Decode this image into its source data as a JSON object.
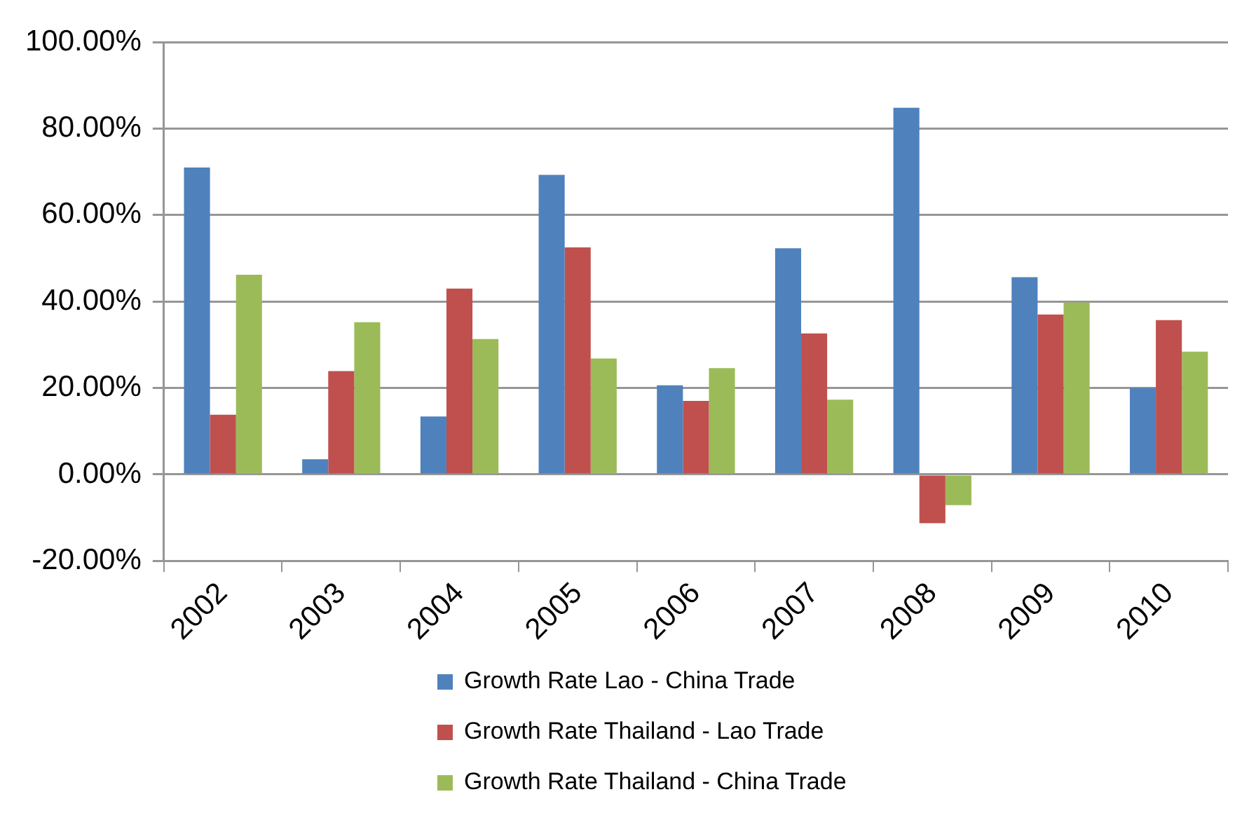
{
  "chart_data": {
    "type": "bar",
    "categories": [
      "2002",
      "2003",
      "2004",
      "2005",
      "2006",
      "2007",
      "2008",
      "2009",
      "2010"
    ],
    "series": [
      {
        "name": "Growth Rate Lao - China Trade",
        "color": "#4f81bd",
        "values": [
          71.0,
          3.5,
          13.4,
          69.3,
          20.6,
          52.3,
          84.8,
          45.6,
          20.0
        ]
      },
      {
        "name": "Growth Rate Thailand - Lao Trade",
        "color": "#c0504d",
        "values": [
          13.8,
          23.9,
          43.0,
          52.5,
          17.0,
          32.6,
          -11.3,
          37.0,
          35.7
        ]
      },
      {
        "name": "Growth Rate Thailand - China Trade",
        "color": "#9bbb59",
        "values": [
          46.2,
          35.2,
          31.3,
          26.8,
          24.6,
          17.3,
          -7.1,
          39.8,
          28.4
        ]
      }
    ],
    "ylim": [
      -20,
      100
    ],
    "yticks": [
      {
        "value": -20,
        "label": "-20.00%"
      },
      {
        "value": 0,
        "label": "0.00%"
      },
      {
        "value": 20,
        "label": "20.00%"
      },
      {
        "value": 40,
        "label": "40.00%"
      },
      {
        "value": 60,
        "label": "60.00%"
      },
      {
        "value": 80,
        "label": "80.00%"
      },
      {
        "value": 100,
        "label": "100.00%"
      }
    ],
    "grid": "y",
    "legend": "bottom"
  }
}
